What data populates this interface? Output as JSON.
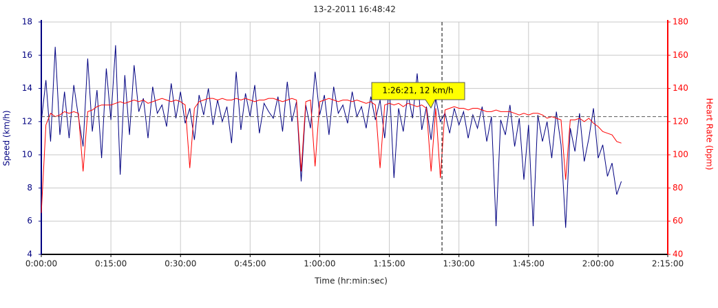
{
  "chart_data": {
    "type": "line",
    "title": "13-2-2011 16:48:42",
    "x_label": "Time (hr:min:sec)",
    "y_label": "Speed (km/h)",
    "y2_label": "Heart Rate (bpm)",
    "annotation": "1:26:21, 12 km/h",
    "crosshair": {
      "x": 5181,
      "y2": 123
    },
    "xlim": [
      0,
      8100
    ],
    "xticks": [
      {
        "value": 0,
        "label": "0:00:00"
      },
      {
        "value": 900,
        "label": "0:15:00"
      },
      {
        "value": 1800,
        "label": "0:30:00"
      },
      {
        "value": 2700,
        "label": "0:45:00"
      },
      {
        "value": 3600,
        "label": "1:00:00"
      },
      {
        "value": 4500,
        "label": "1:15:00"
      },
      {
        "value": 5400,
        "label": "1:30:00"
      },
      {
        "value": 6300,
        "label": "1:45:00"
      },
      {
        "value": 7200,
        "label": "2:00:00"
      },
      {
        "value": 8100,
        "label": "2:15:00"
      }
    ],
    "ylim": [
      4,
      18
    ],
    "yticks": [
      4,
      6,
      8,
      10,
      12,
      14,
      16,
      18
    ],
    "y2lim": [
      40,
      180
    ],
    "y2ticks": [
      40,
      60,
      80,
      100,
      120,
      140,
      160,
      180
    ],
    "grid": true,
    "x": [
      0,
      60,
      120,
      180,
      240,
      300,
      360,
      420,
      480,
      540,
      600,
      660,
      720,
      780,
      840,
      900,
      960,
      1020,
      1080,
      1140,
      1200,
      1260,
      1320,
      1380,
      1440,
      1500,
      1560,
      1620,
      1680,
      1740,
      1800,
      1860,
      1920,
      1980,
      2040,
      2100,
      2160,
      2220,
      2280,
      2340,
      2400,
      2460,
      2520,
      2580,
      2640,
      2700,
      2760,
      2820,
      2880,
      2940,
      3000,
      3060,
      3120,
      3180,
      3240,
      3300,
      3360,
      3420,
      3480,
      3540,
      3600,
      3660,
      3720,
      3780,
      3840,
      3900,
      3960,
      4020,
      4080,
      4140,
      4200,
      4260,
      4320,
      4380,
      4440,
      4500,
      4560,
      4620,
      4680,
      4740,
      4800,
      4860,
      4920,
      4980,
      5040,
      5100,
      5160,
      5220,
      5280,
      5340,
      5400,
      5460,
      5520,
      5580,
      5640,
      5700,
      5760,
      5820,
      5880,
      5940,
      6000,
      6060,
      6120,
      6180,
      6240,
      6300,
      6360,
      6420,
      6480,
      6540,
      6600,
      6660,
      6720,
      6780,
      6840,
      6900,
      6960,
      7020,
      7080,
      7140,
      7200,
      7260,
      7320,
      7380,
      7440,
      7500
    ],
    "series": [
      {
        "name": "Speed (km/h)",
        "color": "#000080",
        "axis": "y",
        "values": [
          12.0,
          14.5,
          10.8,
          16.5,
          11.2,
          13.8,
          11.0,
          14.2,
          12.3,
          10.5,
          15.8,
          11.4,
          13.9,
          9.8,
          15.2,
          12.1,
          16.6,
          8.8,
          14.8,
          11.2,
          15.4,
          12.6,
          13.4,
          11.0,
          14.1,
          12.5,
          13.0,
          11.7,
          14.3,
          12.2,
          13.8,
          11.9,
          12.8,
          10.9,
          13.6,
          12.4,
          14.0,
          11.8,
          13.3,
          12.0,
          12.9,
          10.7,
          15.0,
          11.5,
          13.7,
          12.3,
          14.2,
          11.3,
          13.1,
          12.6,
          12.2,
          13.5,
          11.4,
          14.4,
          12.0,
          13.2,
          8.4,
          13.0,
          11.6,
          15.0,
          12.4,
          13.6,
          11.2,
          14.1,
          12.5,
          13.0,
          11.9,
          13.8,
          12.3,
          12.9,
          11.6,
          13.5,
          12.1,
          13.3,
          11.0,
          14.2,
          8.6,
          12.8,
          11.4,
          13.7,
          12.2,
          14.9,
          11.5,
          12.9,
          10.9,
          13.4,
          12.0,
          12.5,
          11.3,
          12.8,
          11.8,
          12.6,
          11.0,
          12.4,
          11.6,
          12.9,
          10.8,
          12.3,
          5.7,
          12.1,
          11.2,
          13.0,
          10.5,
          12.2,
          8.5,
          11.8,
          5.7,
          12.4,
          10.8,
          12.0,
          9.8,
          12.6,
          10.6,
          5.6,
          11.6,
          10.2,
          12.5,
          9.6,
          11.0,
          12.8,
          9.8,
          10.6,
          8.7,
          9.5,
          7.6,
          8.4
        ]
      },
      {
        "name": "Heart Rate (bpm)",
        "color": "#ff0000",
        "axis": "y2",
        "values": [
          65,
          118,
          125,
          123,
          124,
          126,
          125,
          126,
          125,
          90,
          126,
          127,
          129,
          130,
          130,
          130,
          131,
          132,
          131,
          132,
          133,
          132,
          133,
          131,
          132,
          133,
          134,
          133,
          132,
          133,
          132,
          130,
          92,
          128,
          132,
          133,
          134,
          134,
          133,
          134,
          133,
          133,
          134,
          133,
          134,
          133,
          132,
          133,
          133,
          134,
          134,
          133,
          132,
          133,
          134,
          133,
          90,
          132,
          133,
          93,
          132,
          133,
          134,
          133,
          132,
          133,
          133,
          132,
          133,
          132,
          131,
          132,
          130,
          92,
          130,
          131,
          130,
          131,
          129,
          131,
          130,
          129,
          130,
          128,
          90,
          128,
          86,
          127,
          128,
          129,
          128,
          128,
          127,
          128,
          128,
          127,
          126,
          126,
          127,
          126,
          126,
          126,
          125,
          124,
          125,
          124,
          125,
          125,
          124,
          122,
          123,
          122,
          121,
          85,
          121,
          121,
          122,
          120,
          122,
          119,
          117,
          114,
          113,
          112,
          108,
          107
        ]
      }
    ]
  }
}
